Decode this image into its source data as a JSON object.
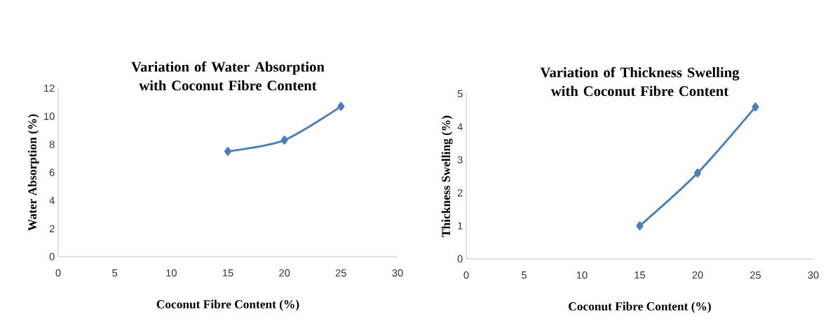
{
  "chart_data": [
    {
      "type": "line",
      "title": "Variation  of Water Absorption with Coconut Fibre Content",
      "xlabel": "Coconut Fibre Content (%)",
      "ylabel": "Water Absorption (%)",
      "x": [
        15,
        20,
        25
      ],
      "series": [
        {
          "color": "#4a7ebb",
          "values": [
            7.5,
            8.3,
            10.7
          ]
        }
      ],
      "xlim": [
        0,
        30
      ],
      "xticks": [
        0,
        5,
        10,
        15,
        20,
        25,
        30
      ],
      "ylim": [
        0,
        12
      ],
      "yticks": [
        0,
        2,
        4,
        6,
        8,
        10,
        12
      ],
      "grid": false,
      "marker": "diamond",
      "line_style": "solid"
    },
    {
      "type": "line",
      "title": "Variation  of Thickness Swelling with Coconut Fibre Content",
      "xlabel": "Coconut Fibre Content (%)",
      "ylabel": "Thickness Swelling  (%)",
      "x": [
        15,
        20,
        25
      ],
      "series": [
        {
          "color": "#4a7ebb",
          "values": [
            1.0,
            2.6,
            4.6
          ]
        }
      ],
      "xlim": [
        0,
        30
      ],
      "xticks": [
        0,
        5,
        10,
        15,
        20,
        25,
        30
      ],
      "ylim": [
        0,
        5
      ],
      "yticks": [
        0,
        1,
        2,
        3,
        4,
        5
      ],
      "grid": false,
      "marker": "diamond",
      "line_style": "solid"
    }
  ]
}
